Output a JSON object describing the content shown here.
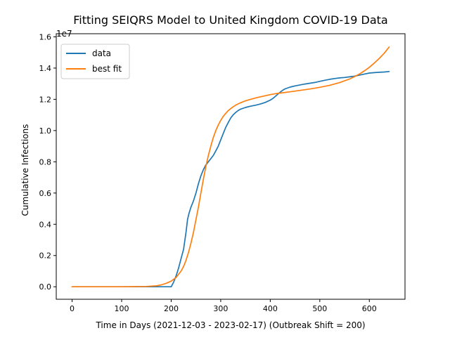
{
  "chart_data": {
    "type": "line",
    "title": "Fitting SEIQRS Model to United Kingdom COVID-19 Data",
    "xlabel": "Time in Days (2021-12-03 - 2023-02-17) (Outbreak Shift = 200)",
    "ylabel": "Cumulative Infections",
    "y_multiplier_label": "1e7",
    "xlim": [
      -32,
      672
    ],
    "ylim": [
      -0.08,
      1.62
    ],
    "x_ticks": [
      0,
      100,
      200,
      300,
      400,
      500,
      600
    ],
    "y_ticks": [
      0.0,
      0.2,
      0.4,
      0.6,
      0.8,
      1.0,
      1.2,
      1.4,
      1.6
    ],
    "x_tick_labels": [
      "0",
      "100",
      "200",
      "300",
      "400",
      "500",
      "600"
    ],
    "y_tick_labels": [
      "0.0",
      "0.2",
      "0.4",
      "0.6",
      "0.8",
      "1.0",
      "1.2",
      "1.4",
      "1.6"
    ],
    "grid": false,
    "legend_position": "upper-left",
    "series": [
      {
        "name": "data",
        "color": "#1f77b4",
        "x": [
          0,
          50,
          100,
          150,
          195,
          200,
          205,
          210,
          215,
          220,
          225,
          230,
          233,
          236,
          240,
          245,
          250,
          255,
          260,
          265,
          270,
          275,
          280,
          285,
          290,
          295,
          300,
          305,
          310,
          315,
          320,
          325,
          330,
          335,
          340,
          350,
          360,
          370,
          380,
          390,
          400,
          405,
          410,
          415,
          420,
          425,
          430,
          440,
          450,
          460,
          470,
          480,
          490,
          500,
          510,
          520,
          530,
          540,
          550,
          560,
          570,
          580,
          590,
          600,
          610,
          620,
          630,
          640
        ],
        "y": [
          0.0,
          0.0,
          0.0,
          0.0,
          0.0,
          0.0,
          0.03,
          0.07,
          0.12,
          0.18,
          0.24,
          0.35,
          0.43,
          0.47,
          0.51,
          0.55,
          0.6,
          0.66,
          0.71,
          0.75,
          0.78,
          0.8,
          0.82,
          0.84,
          0.87,
          0.9,
          0.94,
          0.98,
          1.02,
          1.05,
          1.08,
          1.1,
          1.115,
          1.128,
          1.137,
          1.148,
          1.156,
          1.162,
          1.17,
          1.18,
          1.195,
          1.205,
          1.218,
          1.232,
          1.246,
          1.258,
          1.267,
          1.278,
          1.286,
          1.292,
          1.298,
          1.303,
          1.308,
          1.315,
          1.322,
          1.328,
          1.333,
          1.337,
          1.34,
          1.344,
          1.348,
          1.355,
          1.362,
          1.368,
          1.371,
          1.373,
          1.375,
          1.378
        ]
      },
      {
        "name": "best fit",
        "color": "#ff7f0e",
        "x": [
          0,
          50,
          100,
          150,
          170,
          180,
          190,
          200,
          210,
          215,
          220,
          225,
          230,
          235,
          240,
          245,
          250,
          255,
          260,
          265,
          270,
          275,
          280,
          285,
          290,
          295,
          300,
          305,
          310,
          315,
          320,
          325,
          330,
          340,
          350,
          360,
          370,
          380,
          390,
          400,
          410,
          420,
          440,
          460,
          480,
          500,
          520,
          540,
          560,
          570,
          580,
          590,
          600,
          610,
          620,
          630,
          640
        ],
        "y": [
          0.0,
          0.0,
          0.0,
          0.002,
          0.006,
          0.012,
          0.022,
          0.036,
          0.06,
          0.08,
          0.1,
          0.13,
          0.17,
          0.22,
          0.28,
          0.35,
          0.43,
          0.51,
          0.6,
          0.69,
          0.77,
          0.84,
          0.9,
          0.955,
          1.0,
          1.035,
          1.065,
          1.09,
          1.11,
          1.127,
          1.14,
          1.152,
          1.162,
          1.178,
          1.19,
          1.2,
          1.208,
          1.216,
          1.223,
          1.23,
          1.236,
          1.24,
          1.248,
          1.257,
          1.266,
          1.277,
          1.29,
          1.307,
          1.33,
          1.345,
          1.362,
          1.382,
          1.405,
          1.432,
          1.462,
          1.495,
          1.535
        ]
      }
    ]
  }
}
